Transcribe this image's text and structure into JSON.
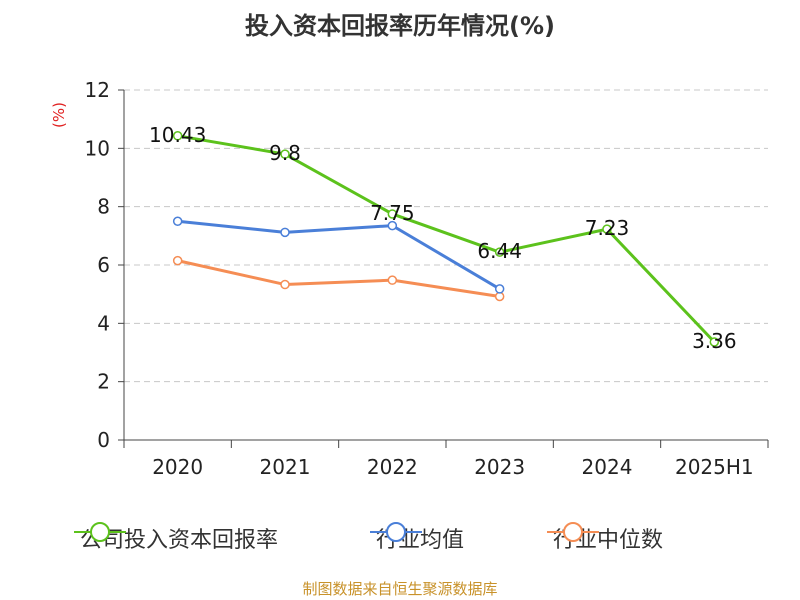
{
  "title": "投入资本回报率历年情况(%)",
  "unit_label": "(%)",
  "source": "制图数据来自恒生聚源数据库",
  "colors": {
    "company": "#5cc21c",
    "industry_avg": "#4a7fd8",
    "industry_median": "#f58d54",
    "unit": "#e02020",
    "source": "#c8922a",
    "grid": "#c8c8c8"
  },
  "chart_data": {
    "type": "line",
    "title": "投入资本回报率历年情况(%)",
    "xlabel": "",
    "ylabel": "(%)",
    "categories": [
      "2020",
      "2021",
      "2022",
      "2023",
      "2024",
      "2025H1"
    ],
    "ylim": [
      0,
      12
    ],
    "yticks": [
      "0",
      "2",
      "4",
      "6",
      "8",
      "10",
      "12"
    ],
    "grid": "horizontal dashed",
    "legend_position": "bottom",
    "series": [
      {
        "name": "公司投入资本回报率",
        "values": [
          10.43,
          9.8,
          7.75,
          6.44,
          7.23,
          3.36
        ],
        "labels": [
          "10.43",
          "9.8",
          "7.75",
          "6.44",
          "7.23",
          "3.36"
        ]
      },
      {
        "name": "行业均值",
        "values": [
          7.5,
          7.12,
          7.35,
          5.18,
          null,
          null
        ]
      },
      {
        "name": "行业中位数",
        "values": [
          6.15,
          5.33,
          5.48,
          4.92,
          null,
          null
        ]
      }
    ]
  }
}
